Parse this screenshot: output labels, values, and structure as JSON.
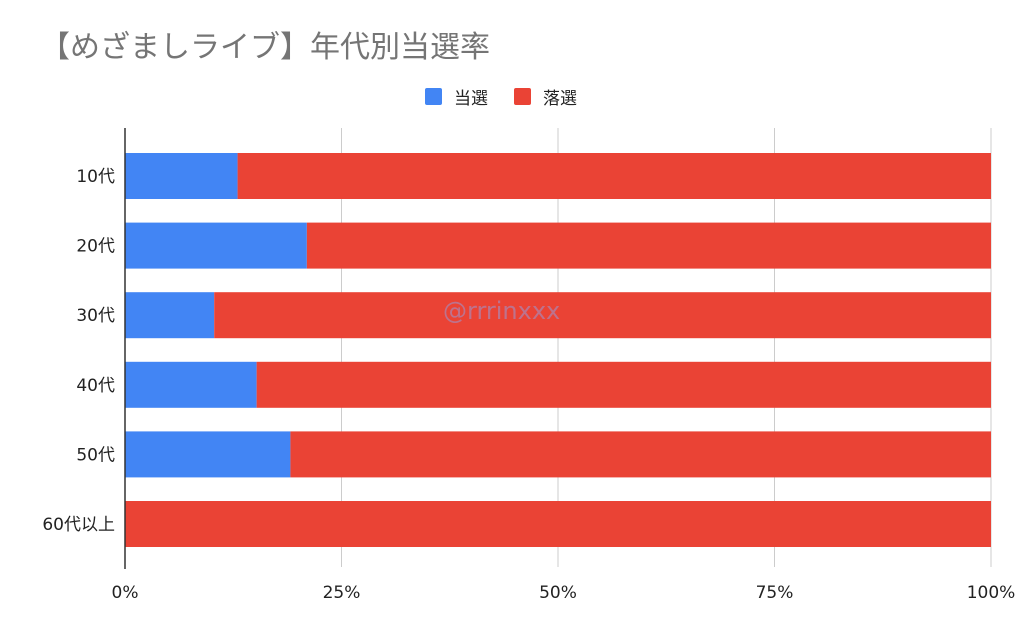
{
  "title": "【めざましライブ】年代別当選率",
  "watermark": "@rrrinxxx",
  "legend": [
    {
      "name": "当選",
      "color": "#4285f4"
    },
    {
      "name": "落選",
      "color": "#ea4335"
    }
  ],
  "chart_data": {
    "type": "bar",
    "orientation": "horizontal",
    "stacked": "percent",
    "title": "【めざましライブ】年代別当選率",
    "legend_position": "top",
    "categories": [
      "10代",
      "20代",
      "30代",
      "40代",
      "50代",
      "60代以上"
    ],
    "series": [
      {
        "name": "当選",
        "color": "#4285f4",
        "values": [
          13,
          21,
          10.3,
          15.2,
          19.1,
          0
        ]
      },
      {
        "name": "落選",
        "color": "#ea4335",
        "values": [
          87,
          79,
          89.7,
          84.8,
          80.9,
          100
        ]
      }
    ],
    "x_ticks": [
      "0%",
      "25%",
      "50%",
      "75%",
      "100%"
    ],
    "xlim": [
      0,
      100
    ],
    "grid": true
  }
}
